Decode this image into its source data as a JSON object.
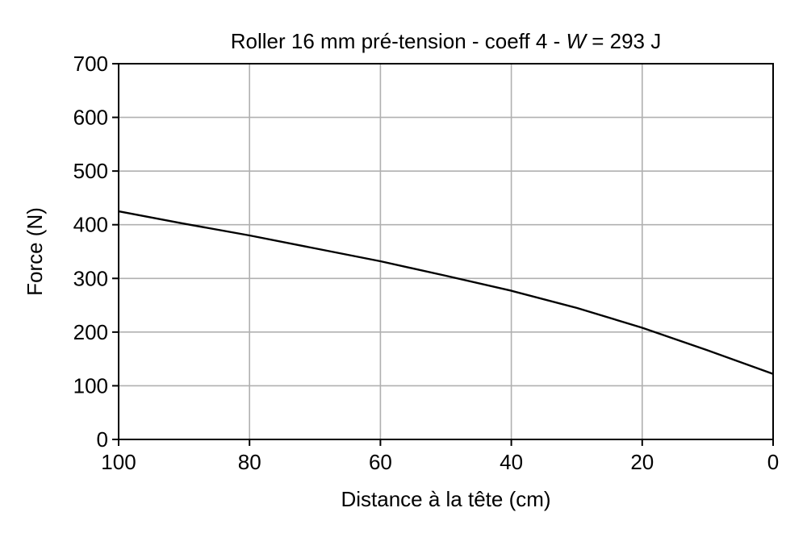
{
  "chart_data": {
    "type": "line",
    "title": {
      "prefix": "Roller 16 mm pré-tension - coeff 4 - ",
      "var": "W",
      "suffix": " = 293 J"
    },
    "xlabel": "Distance à la tête (cm)",
    "ylabel": "Force (N)",
    "xlim": [
      100,
      0
    ],
    "ylim": [
      0,
      700
    ],
    "x_ticks": [
      100,
      80,
      60,
      40,
      20,
      0
    ],
    "y_ticks": [
      0,
      100,
      200,
      300,
      400,
      500,
      600,
      700
    ],
    "grid": true,
    "series": [
      {
        "color": "#000000",
        "x": [
          100,
          90,
          80,
          70,
          60,
          50,
          40,
          30,
          20,
          10,
          0
        ],
        "y": [
          425,
          402,
          380,
          356,
          332,
          305,
          277,
          245,
          208,
          166,
          122
        ]
      }
    ]
  }
}
